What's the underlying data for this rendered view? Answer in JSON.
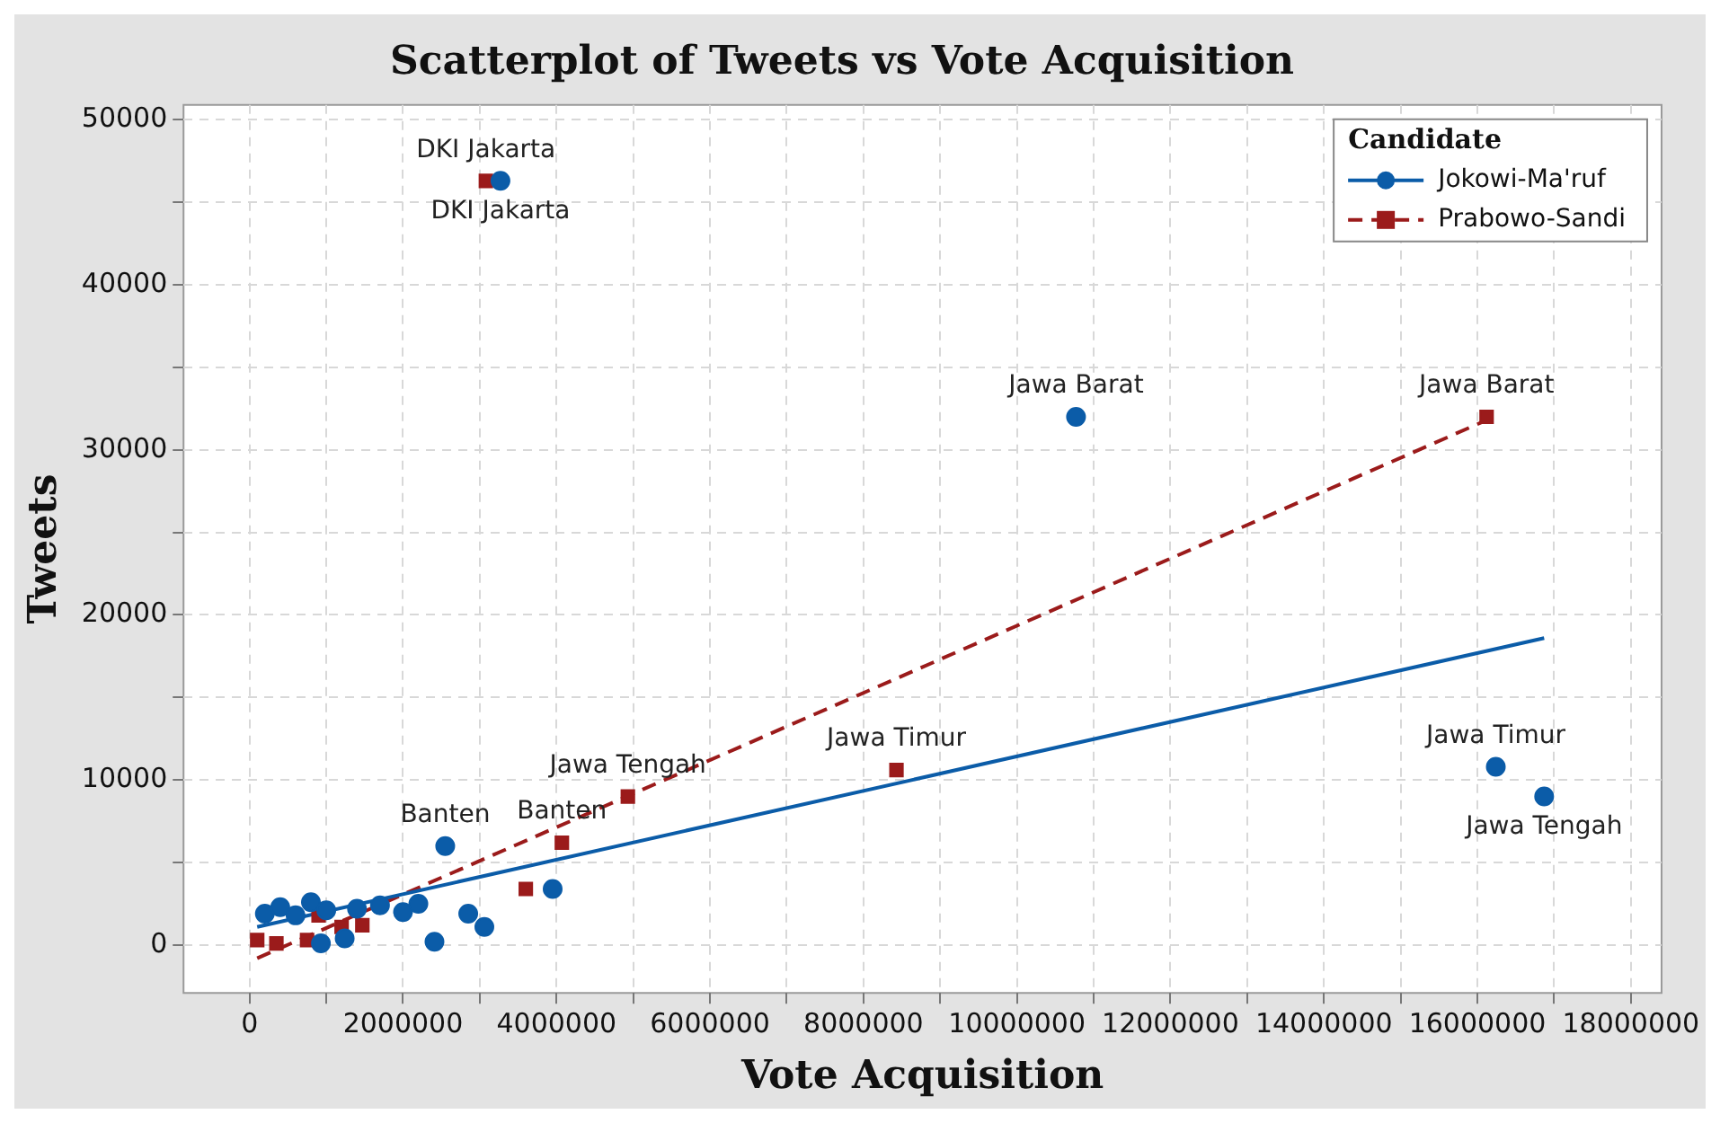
{
  "chart_data": {
    "type": "scatter",
    "title": "Scatterplot of Tweets vs Vote Acquisition",
    "xlabel": "Vote Acquisition",
    "ylabel": "Tweets",
    "legend_title": "Candidate",
    "legend": "top right",
    "grid": true,
    "xlim": [
      -860000,
      18400000
    ],
    "ylim": [
      -2900,
      50900
    ],
    "xticks": [
      0,
      {
        "value": 1000000,
        "label": null
      },
      2000000,
      {
        "value": 3000000,
        "label": null
      },
      4000000,
      {
        "value": 5000000,
        "label": null
      },
      6000000,
      {
        "value": 7000000,
        "label": null
      },
      8000000,
      {
        "value": 9000000,
        "label": null
      },
      10000000,
      {
        "value": 11000000,
        "label": null
      },
      12000000,
      {
        "value": 13000000,
        "label": null
      },
      14000000,
      {
        "value": 15000000,
        "label": null
      },
      16000000,
      {
        "value": 17000000,
        "label": null
      },
      18000000
    ],
    "yticks": [
      0,
      {
        "value": 5000,
        "label": null
      },
      10000,
      {
        "value": 15000,
        "label": null
      },
      20000,
      {
        "value": 25000,
        "label": null
      },
      30000,
      {
        "value": 35000,
        "label": null
      },
      40000,
      {
        "value": 45000,
        "label": null
      },
      50000
    ],
    "series": [
      {
        "name": "Jokowi-Ma'ruf",
        "marker": "circle",
        "color": "#0b5ca8",
        "x": [
          3270000,
          10770000,
          16240000,
          16870000,
          2550000,
          3950000,
          3060000,
          2850000,
          2410000,
          1240000,
          930000,
          200000,
          400000,
          600000,
          800000,
          1000000,
          1400000,
          1700000,
          2000000,
          2200000
        ],
        "values": [
          46300,
          32000,
          10800,
          9000,
          6000,
          3400,
          1100,
          1900,
          200,
          400,
          100,
          1900,
          2300,
          1800,
          2600,
          2100,
          2200,
          2400,
          2000,
          2500
        ]
      },
      {
        "name": "Prabowo-Sandi",
        "marker": "square",
        "color": "#9b1b1b",
        "x": [
          3080000,
          16120000,
          8430000,
          4930000,
          4070000,
          3600000,
          100000,
          350000,
          750000,
          1200000,
          1470000,
          900000
        ],
        "values": [
          46300,
          32000,
          10600,
          9000,
          6200,
          3400,
          300,
          100,
          300,
          1100,
          1200,
          1800
        ]
      },
      {
        "type": "line",
        "color": "#0b5ca8",
        "line_style": "solid",
        "marker": "none",
        "x": [
          100000,
          16870000
        ],
        "values": [
          1100,
          18600
        ]
      },
      {
        "type": "line",
        "color": "#9b1b1b",
        "line_style": "dashed",
        "marker": "none",
        "x": [
          100000,
          16120000
        ],
        "values": [
          -800,
          31800
        ]
      }
    ],
    "annotations": [
      {
        "text": "DKI Jakarta",
        "x": 3080000,
        "y": 46300
      },
      {
        "text": "DKI Jakarta",
        "x": 3270000,
        "y": 46300
      },
      {
        "text": "Jawa Barat",
        "x": 10770000,
        "y": 32000
      },
      {
        "text": "Jawa Barat",
        "x": 16120000,
        "y": 32000
      },
      {
        "text": "Jawa Timur",
        "x": 16240000,
        "y": 10800
      },
      {
        "text": "Jawa Timur",
        "x": 8430000,
        "y": 10600
      },
      {
        "text": "Jawa Tengah",
        "x": 4930000,
        "y": 9000
      },
      {
        "text": "Jawa Tengah",
        "x": 16870000,
        "y": 9000
      },
      {
        "text": "Banten",
        "x": 2550000,
        "y": 6000
      },
      {
        "text": "Banten",
        "x": 4070000,
        "y": 6200
      }
    ]
  }
}
